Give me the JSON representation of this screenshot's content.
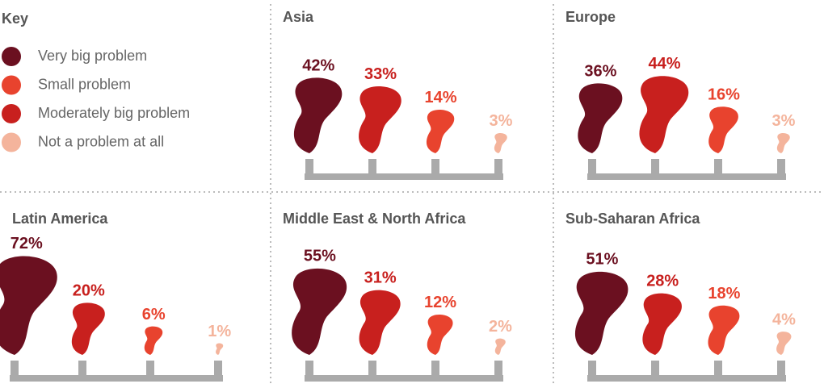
{
  "key": {
    "title": "Key",
    "items": [
      {
        "name": "Very big problem",
        "color": "#6b1020"
      },
      {
        "name": "Small problem",
        "color": "#e8432e"
      },
      {
        "name": "Moderately big problem",
        "color": "#c8201e"
      },
      {
        "name": "Not a problem at all",
        "color": "#f4b49c"
      }
    ]
  },
  "chart_data": [
    {
      "type": "plume",
      "title": "Asia",
      "values": [
        42,
        33,
        14,
        3
      ],
      "value_labels": [
        "42%",
        "33%",
        "14%",
        "3%"
      ],
      "colors": [
        "#6b1020",
        "#c8201e",
        "#e8432e",
        "#f4b49c"
      ]
    },
    {
      "type": "plume",
      "title": "Europe",
      "values": [
        36,
        44,
        16,
        3
      ],
      "value_labels": [
        "36%",
        "44%",
        "16%",
        "3%"
      ],
      "colors": [
        "#6b1020",
        "#c8201e",
        "#e8432e",
        "#f4b49c"
      ]
    },
    {
      "type": "plume",
      "title": "Latin America",
      "values": [
        72,
        20,
        6,
        1
      ],
      "value_labels": [
        "72%",
        "20%",
        "6%",
        "1%"
      ],
      "colors": [
        "#6b1020",
        "#c8201e",
        "#e8432e",
        "#f4b49c"
      ]
    },
    {
      "type": "plume",
      "title": "Middle East & North Africa",
      "values": [
        55,
        31,
        12,
        2
      ],
      "value_labels": [
        "55%",
        "31%",
        "12%",
        "2%"
      ],
      "colors": [
        "#6b1020",
        "#c8201e",
        "#e8432e",
        "#f4b49c"
      ]
    },
    {
      "type": "plume",
      "title": "Sub-Saharan Africa",
      "values": [
        51,
        28,
        18,
        4
      ],
      "value_labels": [
        "51%",
        "28%",
        "18%",
        "4%"
      ],
      "colors": [
        "#6b1020",
        "#c8201e",
        "#e8432e",
        "#f4b49c"
      ]
    }
  ]
}
